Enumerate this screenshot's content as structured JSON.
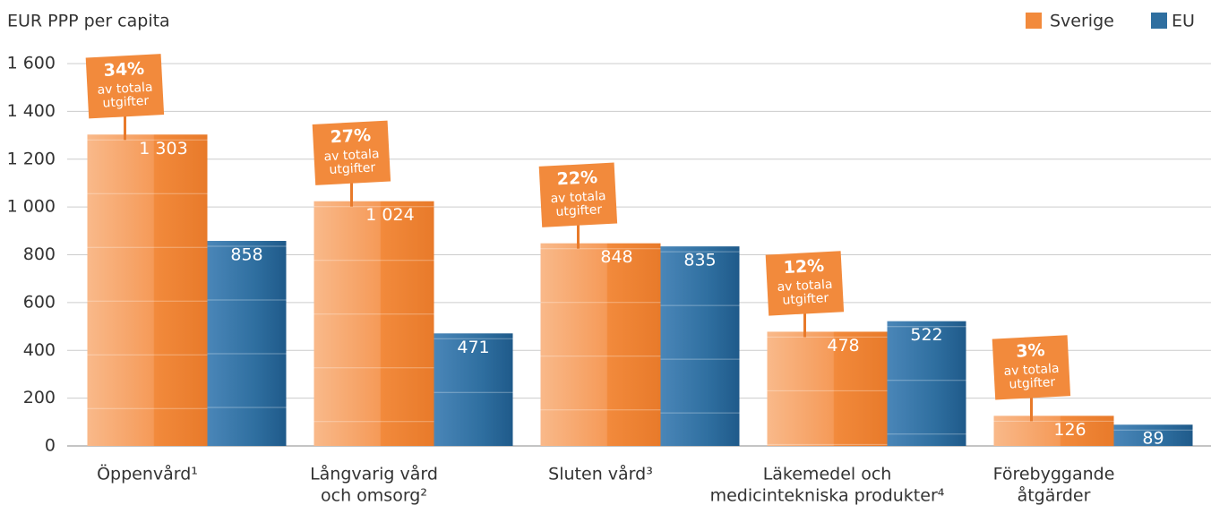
{
  "chart_data": {
    "type": "bar",
    "y_axis_label": "EUR PPP per capita",
    "categories": [
      [
        "Öppenvård¹"
      ],
      [
        "Långvarig vård",
        "och omsorg²"
      ],
      [
        "Sluten vård³"
      ],
      [
        "Läkemedel och",
        "medicintekniska produkter⁴"
      ],
      [
        "Förebyggande",
        "åtgärder"
      ]
    ],
    "series": [
      {
        "name": "Sverige",
        "color": "#f28a3c",
        "values": [
          1303,
          1024,
          848,
          478,
          126
        ],
        "value_labels": [
          "1 303",
          "1 024",
          "848",
          "478",
          "126"
        ]
      },
      {
        "name": "EU",
        "color": "#2f6fa0",
        "values": [
          858,
          471,
          835,
          522,
          89
        ],
        "value_labels": [
          "858",
          "471",
          "835",
          "522",
          "89"
        ]
      }
    ],
    "share_labels": [
      "34%",
      "27%",
      "22%",
      "12%",
      "3%"
    ],
    "share_note": [
      "av totala",
      "utgifter"
    ],
    "ylim": [
      0,
      1600
    ],
    "yticks": [
      0,
      200,
      400,
      600,
      800,
      {
        "value": 1000,
        "label": "1 000"
      },
      {
        "value": 1200,
        "label": "1 200"
      },
      {
        "value": 1400,
        "label": "1 400"
      },
      {
        "value": 1600,
        "label": "1 600"
      }
    ],
    "grid": true,
    "legend": "top-right"
  }
}
